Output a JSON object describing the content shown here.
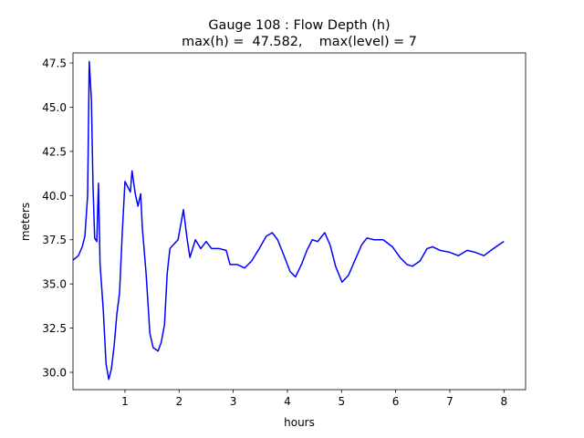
{
  "chart_data": {
    "type": "line",
    "title": [
      "Gauge 108 : Flow Depth (h)",
      "max(h) =  47.582,    max(level) = 7"
    ],
    "xlabel": "hours",
    "ylabel": "meters",
    "x": [
      0.04,
      0.14,
      0.21,
      0.26,
      0.31,
      0.34,
      0.38,
      0.41,
      0.44,
      0.48,
      0.51,
      0.54,
      0.6,
      0.65,
      0.7,
      0.75,
      0.8,
      0.85,
      0.9,
      0.95,
      1.0,
      1.05,
      1.1,
      1.13,
      1.19,
      1.24,
      1.29,
      1.32,
      1.39,
      1.46,
      1.52,
      1.61,
      1.67,
      1.73,
      1.78,
      1.83,
      1.89,
      1.98,
      2.08,
      2.15,
      2.2,
      2.3,
      2.4,
      2.5,
      2.6,
      2.74,
      2.87,
      2.94,
      3.07,
      3.21,
      3.34,
      3.48,
      3.61,
      3.72,
      3.82,
      3.95,
      4.05,
      4.15,
      4.26,
      4.36,
      4.46,
      4.56,
      4.69,
      4.79,
      4.89,
      5.01,
      5.13,
      5.27,
      5.37,
      5.47,
      5.6,
      5.77,
      5.94,
      6.08,
      6.21,
      6.31,
      6.45,
      6.58,
      6.68,
      6.82,
      6.99,
      7.16,
      7.32,
      7.46,
      7.63,
      7.76,
      7.9,
      8.0
    ],
    "series": [
      {
        "name": "h",
        "color": "#0000ff",
        "values": [
          36.35,
          36.6,
          37.1,
          37.7,
          40.0,
          47.582,
          45.4,
          40.5,
          37.6,
          37.4,
          40.7,
          36.1,
          33.5,
          30.5,
          29.6,
          30.2,
          31.5,
          33.3,
          34.5,
          37.9,
          40.8,
          40.5,
          40.2,
          41.4,
          40.1,
          39.4,
          40.1,
          38.2,
          35.6,
          32.2,
          31.4,
          31.2,
          31.7,
          32.7,
          35.6,
          37.0,
          37.2,
          37.5,
          39.2,
          37.5,
          36.5,
          37.5,
          37.0,
          37.4,
          37.0,
          37.0,
          36.9,
          36.1,
          36.1,
          35.9,
          36.3,
          37.0,
          37.7,
          37.9,
          37.5,
          36.5,
          35.7,
          35.4,
          36.1,
          36.9,
          37.5,
          37.4,
          37.9,
          37.2,
          36.0,
          35.1,
          35.5,
          36.5,
          37.2,
          37.6,
          37.5,
          37.5,
          37.1,
          36.5,
          36.1,
          36.0,
          36.3,
          37.0,
          37.1,
          36.9,
          36.8,
          36.6,
          36.9,
          36.8,
          36.6,
          36.9,
          37.2,
          37.4
        ]
      }
    ],
    "xlim": [
      0.04,
      8.4
    ],
    "ylim": [
      29.02,
      48.07
    ],
    "xticks": [
      1,
      2,
      3,
      4,
      5,
      6,
      7,
      8
    ],
    "yticks": [
      {
        "value": 30,
        "label": "30.0"
      },
      32.5,
      {
        "value": 35,
        "label": "35.0"
      },
      37.5,
      {
        "value": 40,
        "label": "40.0"
      },
      42.5,
      {
        "value": 45,
        "label": "45.0"
      },
      47.5
    ],
    "grid": false
  }
}
